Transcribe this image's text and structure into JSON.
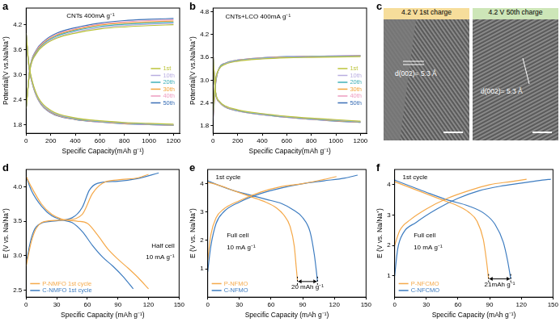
{
  "chart_data": [
    {
      "type": "line",
      "panel": "a",
      "xlabel": "Specific Capacity(mAh g⁻¹)",
      "ylabel": "Potential(V vs.Na/Na⁺)",
      "xlim": [
        0,
        1250
      ],
      "ylim": [
        1.6,
        4.6
      ],
      "xticks": [
        0,
        200,
        400,
        600,
        800,
        1000,
        1200
      ],
      "yticks": [
        1.8,
        2.4,
        {
          "value": 3,
          "label": "3.0"
        },
        3.6,
        4.2
      ],
      "grid": false,
      "legend": "right",
      "annotations": [
        "CNTs 400mA g⁻¹"
      ],
      "series": [
        {
          "name": "1st",
          "color": "#bcc43a",
          "x": [
            0,
            30,
            80,
            150,
            250,
            400,
            600,
            800,
            1000,
            1200,
            null,
            0,
            20,
            50,
            100,
            200,
            400,
            600,
            800,
            1000,
            1200
          ],
          "values": [
            2.2,
            3.1,
            3.5,
            3.72,
            3.88,
            4.0,
            4.1,
            4.15,
            4.18,
            4.2,
            null,
            4.0,
            3.3,
            2.85,
            2.45,
            2.15,
            1.97,
            1.9,
            1.86,
            1.84,
            1.82
          ]
        },
        {
          "name": "10th",
          "color": "#b9aee0",
          "x": [
            0,
            30,
            80,
            150,
            250,
            400,
            600,
            800,
            1000,
            1200,
            null,
            0,
            20,
            50,
            100,
            200,
            400,
            600,
            800,
            1000,
            1200
          ],
          "values": [
            2.2,
            3.1,
            3.5,
            3.74,
            3.9,
            4.03,
            4.13,
            4.18,
            4.21,
            4.23,
            null,
            4.0,
            3.28,
            2.83,
            2.43,
            2.13,
            1.96,
            1.89,
            1.85,
            1.83,
            1.81
          ]
        },
        {
          "name": "20th",
          "color": "#3fb0b8",
          "x": [
            0,
            30,
            80,
            150,
            250,
            400,
            600,
            800,
            1000,
            1200,
            null,
            0,
            20,
            50,
            100,
            200,
            400,
            600,
            800,
            1000,
            1200
          ],
          "values": [
            2.2,
            3.12,
            3.52,
            3.76,
            3.93,
            4.06,
            4.16,
            4.21,
            4.24,
            4.26,
            null,
            4.0,
            3.27,
            2.82,
            2.42,
            2.12,
            1.95,
            1.88,
            1.85,
            1.82,
            1.8
          ]
        },
        {
          "name": "30th",
          "color": "#f2a53b",
          "x": [
            0,
            30,
            80,
            150,
            250,
            400,
            600,
            800,
            1000,
            1200,
            null,
            0,
            20,
            50,
            100,
            200,
            400,
            600,
            800,
            1000,
            1200
          ],
          "values": [
            2.2,
            3.13,
            3.54,
            3.78,
            3.95,
            4.08,
            4.19,
            4.24,
            4.27,
            4.29,
            null,
            4.0,
            3.26,
            2.81,
            2.41,
            2.11,
            1.94,
            1.88,
            1.84,
            1.82,
            1.8
          ]
        },
        {
          "name": "40th",
          "color": "#ee9cc0",
          "x": [
            0,
            30,
            80,
            150,
            250,
            400,
            600,
            800,
            1000,
            1200,
            null,
            0,
            20,
            50,
            100,
            200,
            400,
            600,
            800,
            1000,
            1200
          ],
          "values": [
            2.21,
            3.14,
            3.56,
            3.8,
            3.97,
            4.1,
            4.21,
            4.27,
            4.3,
            4.32,
            null,
            4.0,
            3.25,
            2.8,
            2.4,
            2.1,
            1.94,
            1.87,
            1.84,
            1.81,
            1.79
          ]
        },
        {
          "name": "50th",
          "color": "#3b6fb6",
          "x": [
            0,
            30,
            80,
            150,
            250,
            400,
            600,
            800,
            1000,
            1200,
            null,
            0,
            20,
            50,
            100,
            200,
            400,
            600,
            800,
            1000,
            1200
          ],
          "values": [
            2.21,
            3.15,
            3.58,
            3.82,
            4.0,
            4.13,
            4.24,
            4.3,
            4.33,
            4.35,
            null,
            4.0,
            3.24,
            2.79,
            2.39,
            2.09,
            1.93,
            1.87,
            1.83,
            1.81,
            1.79
          ]
        }
      ]
    },
    {
      "type": "line",
      "panel": "b",
      "xlabel": "Specific Capacity(mAh g⁻¹)",
      "ylabel": "Potential(V vs.Na/Na⁺)",
      "xlim": [
        0,
        1250
      ],
      "ylim": [
        1.6,
        4.9
      ],
      "xticks": [
        0,
        200,
        400,
        600,
        800,
        1000,
        1200
      ],
      "yticks": [
        1.8,
        2.4,
        {
          "value": 3,
          "label": "3.0"
        },
        3.6,
        4.2,
        4.8
      ],
      "grid": false,
      "legend": "right",
      "annotations": [
        "CNTs+LCO 400mA g⁻¹"
      ],
      "series": [
        {
          "name": "1st",
          "color": "#bcc43a",
          "x": [
            0,
            20,
            50,
            100,
            200,
            400,
            600,
            800,
            1000,
            1200,
            null,
            0,
            20,
            50,
            100,
            200,
            400,
            600,
            800,
            1000,
            1200
          ],
          "values": [
            2.2,
            3.0,
            3.3,
            3.42,
            3.5,
            3.56,
            3.59,
            3.6,
            3.61,
            3.62,
            null,
            3.6,
            2.7,
            2.45,
            2.32,
            2.22,
            2.12,
            2.05,
            2.0,
            1.96,
            1.92
          ]
        },
        {
          "name": "10th",
          "color": "#b9aee0",
          "x": [
            0,
            20,
            50,
            100,
            200,
            400,
            600,
            800,
            1000,
            1200,
            null,
            0,
            20,
            50,
            100,
            200,
            400,
            600,
            800,
            1000,
            1200
          ],
          "values": [
            2.15,
            2.98,
            3.3,
            3.43,
            3.51,
            3.57,
            3.6,
            3.61,
            3.62,
            3.63,
            null,
            3.62,
            2.7,
            2.44,
            2.31,
            2.21,
            2.11,
            2.04,
            1.99,
            1.95,
            1.91
          ]
        },
        {
          "name": "20th",
          "color": "#3fb0b8",
          "x": [
            0,
            20,
            50,
            100,
            200,
            400,
            600,
            800,
            1000,
            1200,
            null,
            0,
            20,
            50,
            100,
            200,
            400,
            600,
            800,
            1000,
            1200
          ],
          "values": [
            2.1,
            2.95,
            3.31,
            3.44,
            3.52,
            3.58,
            3.6,
            3.62,
            3.63,
            3.64,
            null,
            3.64,
            2.69,
            2.44,
            2.31,
            2.2,
            2.1,
            2.03,
            1.98,
            1.94,
            1.9
          ]
        },
        {
          "name": "30th",
          "color": "#f2a53b",
          "x": [
            0,
            20,
            50,
            100,
            200,
            400,
            600,
            800,
            1000,
            1200,
            null,
            0,
            20,
            50,
            100,
            200,
            400,
            600,
            800,
            1000,
            1200
          ],
          "values": [
            2.05,
            2.93,
            3.31,
            3.44,
            3.52,
            3.58,
            3.61,
            3.62,
            3.63,
            3.64,
            null,
            3.66,
            2.68,
            2.43,
            2.3,
            2.2,
            2.1,
            2.03,
            1.98,
            1.93,
            1.9
          ]
        },
        {
          "name": "40th",
          "color": "#ee9cc0",
          "x": [
            0,
            20,
            50,
            100,
            200,
            400,
            600,
            800,
            1000,
            1200,
            null,
            0,
            20,
            50,
            100,
            200,
            400,
            600,
            800,
            1000,
            1200
          ],
          "values": [
            2.0,
            2.9,
            3.32,
            3.45,
            3.53,
            3.59,
            3.61,
            3.63,
            3.64,
            3.65,
            null,
            3.68,
            2.68,
            2.43,
            2.3,
            2.19,
            2.09,
            2.02,
            1.97,
            1.93,
            1.89
          ]
        },
        {
          "name": "50th",
          "color": "#3b6fb6",
          "x": [
            0,
            20,
            50,
            100,
            200,
            400,
            600,
            800,
            1000,
            1200,
            null,
            0,
            20,
            50,
            100,
            200,
            400,
            600,
            800,
            1000,
            1200
          ],
          "values": [
            1.95,
            2.88,
            3.32,
            3.45,
            3.53,
            3.59,
            3.62,
            3.63,
            3.64,
            3.65,
            null,
            3.7,
            2.67,
            2.42,
            2.29,
            2.19,
            2.09,
            2.02,
            1.97,
            1.92,
            1.89
          ]
        }
      ]
    },
    {
      "type": "line",
      "panel": "d",
      "xlabel": "Specific Capacity (mAh g⁻¹)",
      "ylabel": "E (V vs. Na/Na⁺)",
      "xlim": [
        0,
        150
      ],
      "ylim": [
        2.4,
        4.25
      ],
      "xticks": [
        0,
        30,
        60,
        90,
        120,
        150
      ],
      "yticks": [
        2.5,
        {
          "value": 3,
          "label": "3.0"
        },
        3.5,
        {
          "value": 4,
          "label": "4.0"
        }
      ],
      "grid": false,
      "legend": "lower left",
      "annotations": [
        "Half cell",
        "10 mA g⁻¹"
      ],
      "series": [
        {
          "name": "P-NMFO 1st cycle",
          "color": "#f5a94a",
          "x": [
            0,
            5,
            10,
            20,
            40,
            55,
            65,
            75,
            90,
            110,
            120,
            null,
            0,
            5,
            15,
            25,
            35,
            50,
            60,
            70,
            80,
            90,
            100,
            110,
            120
          ],
          "values": [
            2.85,
            3.2,
            3.4,
            3.5,
            3.52,
            3.6,
            3.9,
            4.05,
            4.1,
            4.13,
            4.18,
            null,
            4.15,
            4.0,
            3.75,
            3.6,
            3.53,
            3.5,
            3.47,
            3.3,
            3.1,
            2.95,
            2.82,
            2.68,
            2.52
          ]
        },
        {
          "name": "C-NMFO 1st cycle",
          "color": "#3d7cc0",
          "x": [
            0,
            5,
            10,
            25,
            45,
            55,
            62,
            70,
            90,
            110,
            130,
            null,
            0,
            5,
            15,
            25,
            35,
            45,
            55,
            65,
            75,
            85,
            95,
            105
          ],
          "values": [
            2.9,
            3.25,
            3.42,
            3.5,
            3.55,
            3.7,
            3.95,
            4.05,
            4.08,
            4.12,
            4.2,
            null,
            4.15,
            3.95,
            3.72,
            3.58,
            3.52,
            3.48,
            3.35,
            3.15,
            2.98,
            2.85,
            2.7,
            2.52
          ]
        }
      ]
    },
    {
      "type": "line",
      "panel": "e",
      "xlabel": "Specific Capacity (mAh g⁻¹)",
      "ylabel": "E (V vs. Na/Na⁺)",
      "xlim": [
        0,
        150
      ],
      "ylim": [
        0,
        4.5
      ],
      "xticks": [
        0,
        30,
        60,
        90,
        120,
        150
      ],
      "yticks": [
        1,
        2,
        3,
        4
      ],
      "grid": false,
      "legend": "lower left",
      "annotations": [
        "1st cycle",
        "Full cell",
        "10 mA g⁻¹",
        "20 mAh g⁻¹"
      ],
      "series": [
        {
          "name": "P-NFMO",
          "color": "#f5a94a",
          "x": [
            0,
            3,
            8,
            15,
            30,
            50,
            70,
            90,
            110,
            122,
            null,
            0,
            10,
            25,
            40,
            55,
            65,
            72,
            78,
            82,
            84,
            85
          ],
          "values": [
            1.3,
            2.2,
            2.8,
            3.1,
            3.4,
            3.7,
            3.9,
            4.0,
            4.15,
            4.25,
            null,
            4.05,
            3.95,
            3.75,
            3.55,
            3.35,
            3.15,
            2.9,
            2.5,
            1.8,
            1.0,
            0.6
          ]
        },
        {
          "name": "C-NFMO",
          "color": "#3d7cc0",
          "x": [
            0,
            3,
            8,
            15,
            30,
            50,
            70,
            90,
            110,
            130,
            142,
            null,
            0,
            10,
            25,
            40,
            55,
            70,
            80,
            90,
            97,
            101,
            103,
            104
          ],
          "values": [
            0.9,
            1.8,
            2.6,
            3.0,
            3.35,
            3.65,
            3.85,
            4.0,
            4.1,
            4.2,
            4.3,
            null,
            4.1,
            3.95,
            3.75,
            3.6,
            3.45,
            3.3,
            3.1,
            2.8,
            2.3,
            1.5,
            0.9,
            0.55
          ]
        }
      ]
    },
    {
      "type": "line",
      "panel": "f",
      "xlabel": "Specific Capacity (mAh g⁻¹)",
      "ylabel": "E (V vs. Na/Na⁺)",
      "xlim": [
        0,
        150
      ],
      "ylim": [
        0.3,
        4.5
      ],
      "xticks": [
        0,
        30,
        60,
        90,
        120,
        150
      ],
      "yticks": [
        1,
        2,
        3,
        4
      ],
      "grid": false,
      "legend": "lower left",
      "annotations": [
        "1st cycle",
        "Full cell",
        "10 mA g⁻¹",
        "21mAh g⁻¹"
      ],
      "series": [
        {
          "name": "P-NFCMO",
          "color": "#f5a94a",
          "x": [
            0,
            5,
            15,
            30,
            50,
            70,
            90,
            110,
            125,
            null,
            0,
            15,
            30,
            45,
            60,
            70,
            78,
            84,
            87,
            89
          ],
          "values": [
            2.0,
            2.5,
            2.85,
            3.2,
            3.55,
            3.8,
            4.0,
            4.1,
            4.18,
            null,
            4.1,
            3.9,
            3.7,
            3.5,
            3.3,
            3.1,
            2.8,
            2.2,
            1.5,
            0.9
          ]
        },
        {
          "name": "C-NFCMO",
          "color": "#3d7cc0",
          "x": [
            0,
            3,
            8,
            20,
            40,
            60,
            80,
            100,
            120,
            140,
            148,
            null,
            0,
            15,
            30,
            50,
            70,
            85,
            95,
            103,
            107,
            110
          ],
          "values": [
            1.0,
            1.9,
            2.4,
            2.75,
            3.2,
            3.55,
            3.8,
            3.95,
            4.05,
            4.15,
            4.18,
            null,
            4.15,
            3.95,
            3.75,
            3.5,
            3.3,
            3.05,
            2.7,
            2.1,
            1.5,
            0.9
          ]
        }
      ]
    }
  ],
  "image_panel": {
    "panel": "c",
    "images": [
      {
        "caption": "4.2 V 1st charge",
        "annotation": "d(002)= 5.3 Å"
      },
      {
        "caption": "4.2 V 50th charge",
        "annotation": "d(002)= 5.3 Å"
      }
    ]
  }
}
